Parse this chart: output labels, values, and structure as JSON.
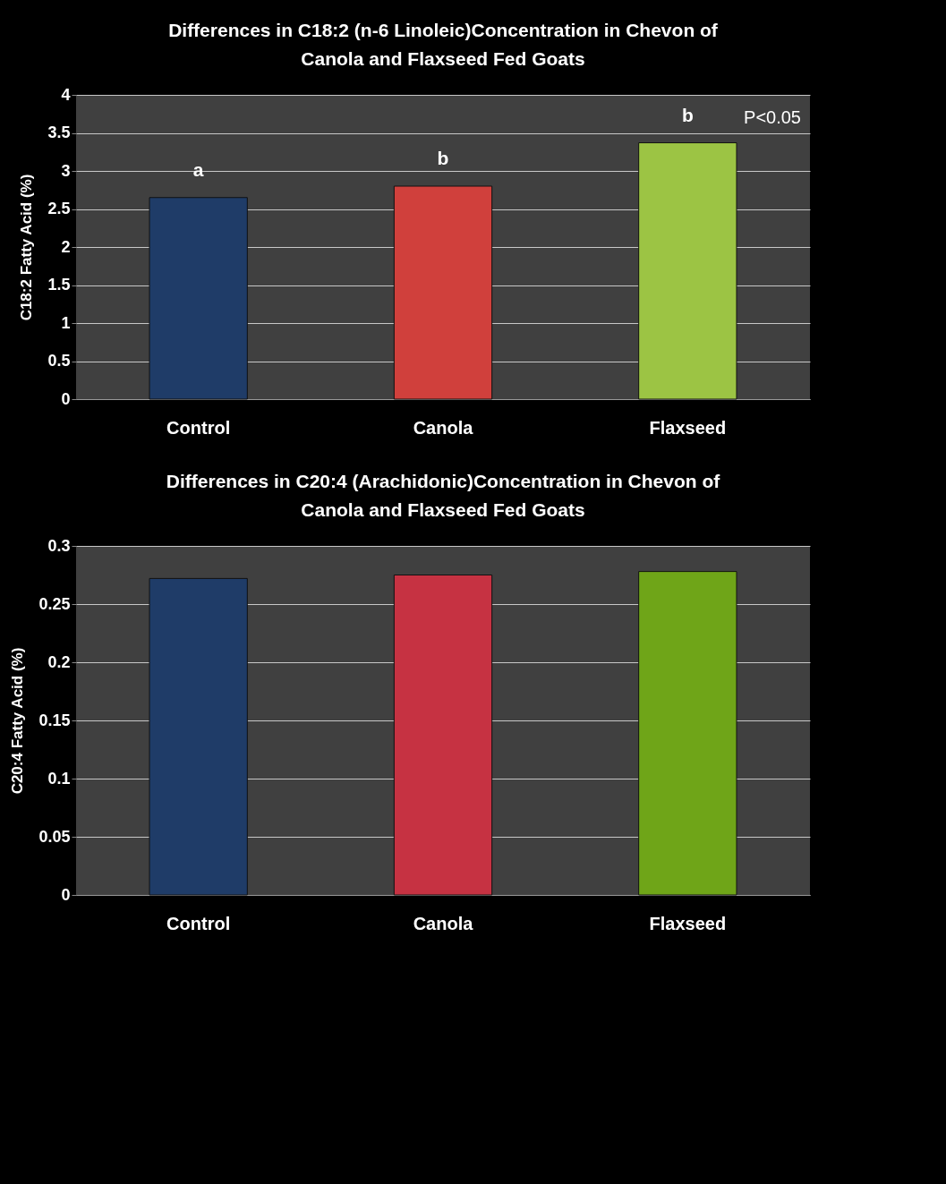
{
  "chart_data": [
    {
      "type": "bar",
      "title": [
        "Differences in C18:2 (n-6 Linoleic)Concentration in Chevon  of",
        "Canola and Flaxseed Fed  Goats"
      ],
      "ylabel": "C18:2  Fatty Acid (%)",
      "categories": [
        "Control",
        "Canola",
        "Flaxseed"
      ],
      "values": [
        2.65,
        2.8,
        3.37
      ],
      "colors": [
        "#1f3c68",
        "#d0403c",
        "#9cc444"
      ],
      "ylim": [
        0,
        4
      ],
      "yticks": [
        0,
        0.5,
        1,
        1.5,
        2,
        2.5,
        3,
        3.5,
        4
      ],
      "grid": "y",
      "annotations": [
        {
          "text": "a",
          "x": "Control",
          "y": 2.65
        },
        {
          "text": "b",
          "x": "Canola",
          "y": 2.8
        },
        {
          "text": "b",
          "x": "Flaxseed",
          "y": 3.37
        },
        "P<0.05"
      ]
    },
    {
      "type": "bar",
      "title": [
        "Differences in C20:4 (Arachidonic)Concentration in Chevon  of",
        "Canola and Flaxseed Fed  Goats"
      ],
      "ylabel": "C20:4 Fatty Acid (%)",
      "categories": [
        "Control",
        "Canola",
        "Flaxseed"
      ],
      "values": [
        0.272,
        0.275,
        0.278
      ],
      "colors": [
        "#1f3c68",
        "#c63242",
        "#6fa518"
      ],
      "ylim": [
        0,
        0.3
      ],
      "yticks": [
        0,
        0.05,
        0.1,
        0.15,
        0.2,
        0.25,
        0.3
      ],
      "grid": "y"
    }
  ]
}
